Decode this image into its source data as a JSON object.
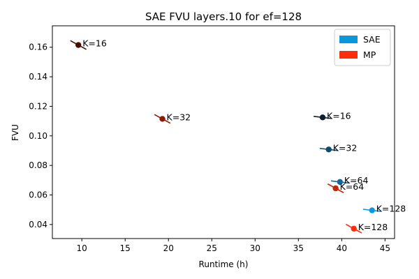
{
  "chart_data": {
    "type": "scatter",
    "title": "SAE FVU layers.10 for ef=128",
    "xlabel": "Runtime (h)",
    "ylabel": "FVU",
    "xlim": [
      6.6,
      46.1
    ],
    "ylim": [
      0.0305,
      0.1745
    ],
    "xticks": [
      10,
      15,
      20,
      25,
      30,
      35,
      40,
      45
    ],
    "yticks": [
      0.04,
      0.06,
      0.08,
      0.1,
      0.12,
      0.14,
      0.16
    ],
    "grid": false,
    "legend_position": "top-right",
    "legend": [
      {
        "label": "SAE",
        "color": "#0a97dc"
      },
      {
        "label": "MP",
        "color": "#fb2d0a"
      }
    ],
    "series": [
      {
        "name": "SAE",
        "points": [
          {
            "x": 37.8,
            "y": 0.1125,
            "label": "K=16",
            "color": "#0b1f2e"
          },
          {
            "x": 38.5,
            "y": 0.0908,
            "label": "K=32",
            "color": "#0c4a72"
          },
          {
            "x": 39.8,
            "y": 0.0688,
            "label": "K=64",
            "color": "#0b6aa4"
          },
          {
            "x": 43.5,
            "y": 0.0496,
            "label": "K=128",
            "color": "#0a97dc"
          }
        ]
      },
      {
        "name": "MP",
        "points": [
          {
            "x": 9.6,
            "y": 0.1615,
            "label": "K=16",
            "color": "#4a0a02"
          },
          {
            "x": 19.3,
            "y": 0.1115,
            "label": "K=32",
            "color": "#8d1a05"
          },
          {
            "x": 39.3,
            "y": 0.0645,
            "label": "K=64",
            "color": "#c42408"
          },
          {
            "x": 41.4,
            "y": 0.0372,
            "label": "K=128",
            "color": "#fb2d0a"
          }
        ]
      }
    ]
  }
}
